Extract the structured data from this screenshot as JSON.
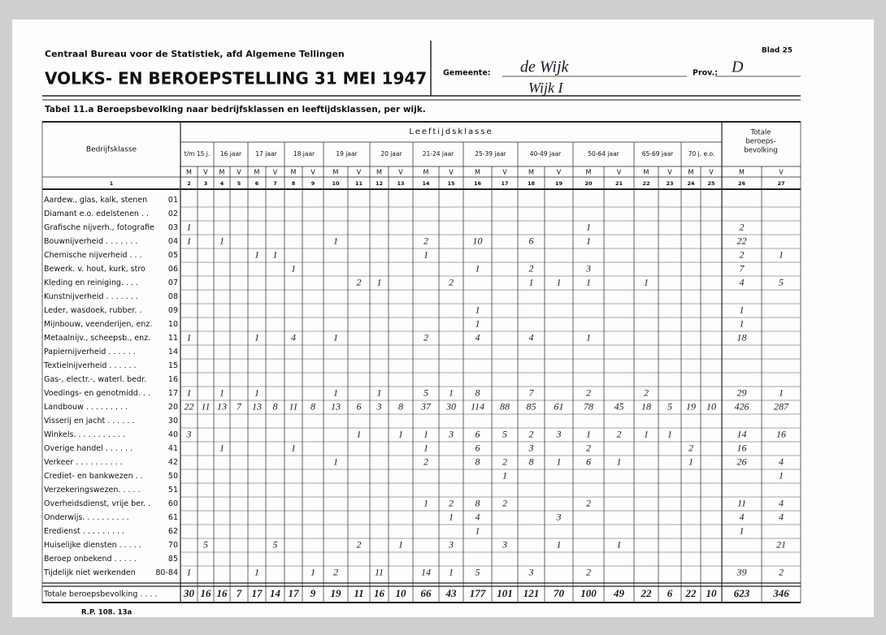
{
  "header": {
    "org": "Centraal Bureau voor de Statistiek, afd Algemene Tellingen",
    "title": "VOLKS- EN BEROEPSTELLING 31 MEI 1947",
    "gemeente_label": "Gemeente:",
    "gemeente": "de Wijk",
    "wijk": "Wijk I",
    "prov_label": "Prov.:",
    "prov": "D",
    "blad": "Blad 25",
    "table_title": "Tabel 11.a Beroepsbevolking naar bedrijfsklassen en leeftijdsklassen, per wijk."
  },
  "table": {
    "class_header": "Bedrijfsklasse",
    "age_header": "Leeftijdsklasse",
    "total_header": [
      "Totale",
      "beroeps-",
      "bevolking"
    ],
    "age_groups": [
      "t/m 15 j.",
      "16 jaar",
      "17 jaar",
      "18 jaar",
      "19 jaar",
      "20 jaar",
      "21-24 jaar",
      "25-39 jaar",
      "40-49 jaar",
      "50-64 jaar",
      "65-69 jaar",
      "70 j. e.o."
    ],
    "sex": [
      "M",
      "V"
    ],
    "column_numbers": [
      1,
      2,
      3,
      4,
      5,
      6,
      7,
      8,
      9,
      10,
      11,
      12,
      13,
      14,
      15,
      16,
      17,
      18,
      19,
      20,
      21,
      22,
      23,
      24,
      25,
      26,
      27
    ],
    "rows": [
      {
        "label": "Aardew., glas, kalk, stenen",
        "code": "01",
        "cells": [
          null,
          null,
          null,
          null,
          null,
          null,
          null,
          null,
          null,
          null,
          null,
          null,
          null,
          null,
          null,
          null,
          null,
          null,
          null,
          null,
          null,
          null,
          null,
          null,
          null,
          null
        ]
      },
      {
        "label": "Diamant e.o. edelstenen . .",
        "code": "02",
        "cells": [
          null,
          null,
          null,
          null,
          null,
          null,
          null,
          null,
          null,
          null,
          null,
          null,
          null,
          null,
          null,
          null,
          null,
          null,
          null,
          null,
          null,
          null,
          null,
          null,
          null,
          null
        ]
      },
      {
        "label": "Grafische nijverh., fotografie",
        "code": "03",
        "cells": [
          1,
          null,
          null,
          null,
          null,
          null,
          null,
          null,
          null,
          null,
          null,
          null,
          null,
          null,
          null,
          null,
          null,
          null,
          1,
          null,
          null,
          null,
          null,
          null,
          2,
          null
        ]
      },
      {
        "label": "Bouwnijverheid . . . . . . .",
        "code": "04",
        "cells": [
          1,
          null,
          1,
          null,
          null,
          null,
          null,
          null,
          1,
          null,
          null,
          null,
          2,
          null,
          10,
          null,
          6,
          null,
          1,
          null,
          null,
          null,
          null,
          null,
          22,
          null
        ]
      },
      {
        "label": "Chemische nijverheid . . .",
        "code": "05",
        "cells": [
          null,
          null,
          null,
          null,
          1,
          1,
          null,
          null,
          null,
          null,
          null,
          null,
          1,
          null,
          null,
          null,
          null,
          null,
          null,
          null,
          null,
          null,
          null,
          null,
          2,
          1
        ]
      },
      {
        "label": "Bewerk. v. hout, kurk, stro",
        "code": "06",
        "cells": [
          null,
          null,
          null,
          null,
          null,
          null,
          1,
          null,
          null,
          null,
          null,
          null,
          null,
          null,
          1,
          null,
          2,
          null,
          3,
          null,
          null,
          null,
          null,
          null,
          7,
          null
        ]
      },
      {
        "label": "Kleding en reiniging. . . .",
        "code": "07",
        "cells": [
          null,
          null,
          null,
          null,
          null,
          null,
          null,
          null,
          null,
          2,
          1,
          null,
          null,
          2,
          null,
          null,
          1,
          1,
          1,
          null,
          1,
          null,
          null,
          null,
          4,
          5
        ]
      },
      {
        "label": "Kunstnijverheid . . . . . . .",
        "code": "08",
        "cells": [
          null,
          null,
          null,
          null,
          null,
          null,
          null,
          null,
          null,
          null,
          null,
          null,
          null,
          null,
          null,
          null,
          null,
          null,
          null,
          null,
          null,
          null,
          null,
          null,
          null,
          null
        ]
      },
      {
        "label": "Leder, wasdoek, rubber. .",
        "code": "09",
        "cells": [
          null,
          null,
          null,
          null,
          null,
          null,
          null,
          null,
          null,
          null,
          null,
          null,
          null,
          null,
          1,
          null,
          null,
          null,
          null,
          null,
          null,
          null,
          null,
          null,
          1,
          null
        ]
      },
      {
        "label": "Mijnbouw, veenderijen, enz.",
        "code": "10",
        "cells": [
          null,
          null,
          null,
          null,
          null,
          null,
          null,
          null,
          null,
          null,
          null,
          null,
          null,
          null,
          1,
          null,
          null,
          null,
          null,
          null,
          null,
          null,
          null,
          null,
          1,
          null
        ]
      },
      {
        "label": "Metaalnijv., scheepsb., enz.",
        "code": "11",
        "cells": [
          1,
          null,
          null,
          null,
          1,
          null,
          4,
          null,
          1,
          null,
          null,
          null,
          2,
          null,
          4,
          null,
          4,
          null,
          1,
          null,
          null,
          null,
          null,
          null,
          18,
          null
        ]
      },
      {
        "label": "Papiernijverheid . . . . . .",
        "code": "14",
        "cells": [
          null,
          null,
          null,
          null,
          null,
          null,
          null,
          null,
          null,
          null,
          null,
          null,
          null,
          null,
          null,
          null,
          null,
          null,
          null,
          null,
          null,
          null,
          null,
          null,
          null,
          null
        ]
      },
      {
        "label": "Textielnijverheid . . . . . .",
        "code": "15",
        "cells": [
          null,
          null,
          null,
          null,
          null,
          null,
          null,
          null,
          null,
          null,
          null,
          null,
          null,
          null,
          null,
          null,
          null,
          null,
          null,
          null,
          null,
          null,
          null,
          null,
          null,
          null
        ]
      },
      {
        "label": "Gas-, electr.-, waterl. bedr.",
        "code": "16",
        "cells": [
          null,
          null,
          null,
          null,
          null,
          null,
          null,
          null,
          null,
          null,
          null,
          null,
          null,
          null,
          null,
          null,
          null,
          null,
          null,
          null,
          null,
          null,
          null,
          null,
          null,
          null
        ]
      },
      {
        "label": "Voedings- en genotmidd. . .",
        "code": "17",
        "cells": [
          1,
          null,
          1,
          null,
          1,
          null,
          null,
          null,
          1,
          null,
          1,
          null,
          5,
          1,
          8,
          null,
          7,
          null,
          2,
          null,
          2,
          null,
          null,
          null,
          29,
          1
        ]
      },
      {
        "label": "Landbouw . . . . . . . . .",
        "code": "20",
        "cells": [
          22,
          11,
          13,
          7,
          13,
          8,
          11,
          8,
          13,
          6,
          3,
          8,
          37,
          30,
          114,
          88,
          85,
          61,
          78,
          45,
          18,
          5,
          19,
          10,
          426,
          287
        ]
      },
      {
        "label": "Visserij en jacht . . . . . .",
        "code": "30",
        "cells": [
          null,
          null,
          null,
          null,
          null,
          null,
          null,
          null,
          null,
          null,
          null,
          null,
          null,
          null,
          null,
          null,
          null,
          null,
          null,
          null,
          null,
          null,
          null,
          null,
          null,
          null
        ]
      },
      {
        "label": "Winkels. . . . . . . . . . .",
        "code": "40",
        "cells": [
          3,
          null,
          null,
          null,
          null,
          null,
          null,
          null,
          null,
          1,
          null,
          1,
          1,
          3,
          6,
          5,
          2,
          3,
          1,
          2,
          1,
          1,
          null,
          null,
          14,
          16
        ]
      },
      {
        "label": "Overige handel . . . . . .",
        "code": "41",
        "cells": [
          null,
          null,
          1,
          null,
          null,
          null,
          1,
          null,
          null,
          null,
          null,
          null,
          1,
          null,
          6,
          null,
          3,
          null,
          2,
          null,
          null,
          null,
          2,
          null,
          16,
          null
        ]
      },
      {
        "label": "Verkeer . . . . . . . . . .",
        "code": "42",
        "cells": [
          null,
          null,
          null,
          null,
          null,
          null,
          null,
          null,
          1,
          null,
          null,
          null,
          2,
          null,
          8,
          2,
          8,
          1,
          6,
          1,
          null,
          null,
          1,
          null,
          26,
          4
        ]
      },
      {
        "label": "Crediet- en bankwezen . .",
        "code": "50",
        "cells": [
          null,
          null,
          null,
          null,
          null,
          null,
          null,
          null,
          null,
          null,
          null,
          null,
          null,
          null,
          null,
          1,
          null,
          null,
          null,
          null,
          null,
          null,
          null,
          null,
          null,
          1
        ]
      },
      {
        "label": "Verzekeringswezen. . . . .",
        "code": "51",
        "cells": [
          null,
          null,
          null,
          null,
          null,
          null,
          null,
          null,
          null,
          null,
          null,
          null,
          null,
          null,
          null,
          null,
          null,
          null,
          null,
          null,
          null,
          null,
          null,
          null,
          null,
          null
        ]
      },
      {
        "label": "Overheidsdienst, vrije ber. .",
        "code": "60",
        "cells": [
          null,
          null,
          null,
          null,
          null,
          null,
          null,
          null,
          null,
          null,
          null,
          null,
          1,
          2,
          8,
          2,
          null,
          null,
          2,
          null,
          null,
          null,
          null,
          null,
          11,
          4
        ]
      },
      {
        "label": "Onderwijs. . . . . . . . . .",
        "code": "61",
        "cells": [
          null,
          null,
          null,
          null,
          null,
          null,
          null,
          null,
          null,
          null,
          null,
          null,
          null,
          1,
          4,
          null,
          null,
          3,
          null,
          null,
          null,
          null,
          null,
          null,
          4,
          4
        ]
      },
      {
        "label": "Eredienst . . . . . . . . .",
        "code": "62",
        "cells": [
          null,
          null,
          null,
          null,
          null,
          null,
          null,
          null,
          null,
          null,
          null,
          null,
          null,
          null,
          1,
          null,
          null,
          null,
          null,
          null,
          null,
          null,
          null,
          null,
          1,
          null
        ]
      },
      {
        "label": "Huiselijke diensten . . . . .",
        "code": "70",
        "cells": [
          null,
          5,
          null,
          null,
          null,
          5,
          null,
          null,
          null,
          2,
          null,
          1,
          null,
          3,
          null,
          3,
          null,
          1,
          null,
          1,
          null,
          null,
          null,
          null,
          null,
          21
        ]
      },
      {
        "label": "Beroep onbekend . . . . .",
        "code": "85",
        "cells": [
          null,
          null,
          null,
          null,
          null,
          null,
          null,
          null,
          null,
          null,
          null,
          null,
          null,
          null,
          null,
          null,
          null,
          null,
          null,
          null,
          null,
          null,
          null,
          null,
          null,
          null
        ]
      },
      {
        "label": "Tijdelijk niet werkenden",
        "code": "80-84",
        "cells": [
          1,
          null,
          null,
          null,
          1,
          null,
          null,
          1,
          2,
          null,
          11,
          null,
          14,
          1,
          5,
          null,
          3,
          null,
          2,
          null,
          null,
          null,
          null,
          null,
          39,
          2
        ]
      }
    ],
    "total": {
      "label": "Totale beroepsbevolking . . . .",
      "cells": [
        30,
        16,
        16,
        7,
        17,
        14,
        17,
        9,
        19,
        11,
        16,
        10,
        66,
        43,
        177,
        101,
        121,
        70,
        100,
        49,
        22,
        6,
        22,
        10,
        623,
        346
      ]
    }
  },
  "footer": "R.P. 108. 13a"
}
